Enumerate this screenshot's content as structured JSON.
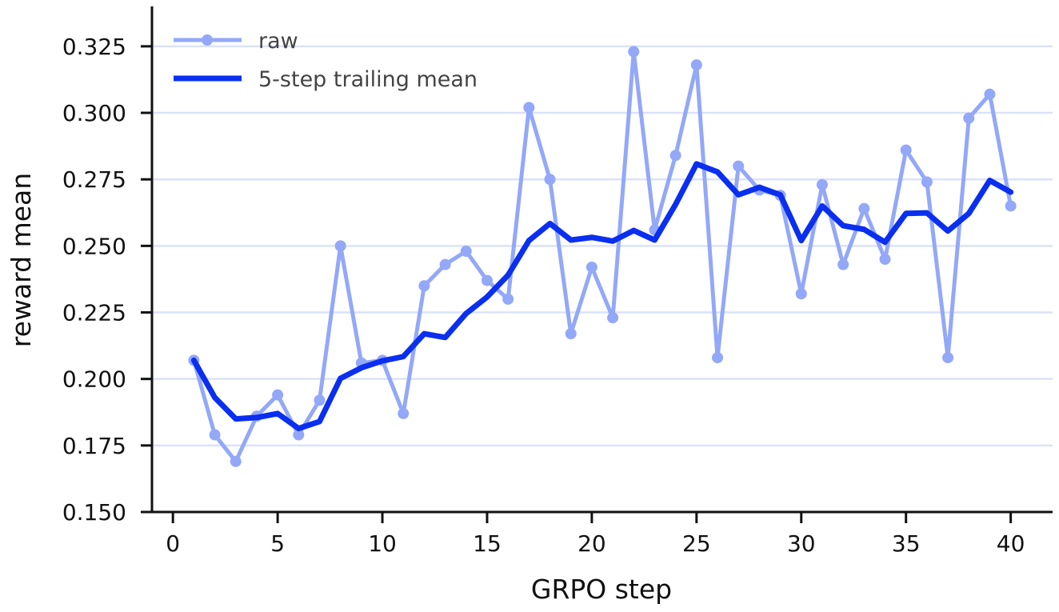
{
  "chart_data": {
    "type": "line",
    "title": "",
    "xlabel": "GRPO step",
    "ylabel": "reward mean",
    "xlim": [
      -1,
      42
    ],
    "ylim": [
      0.15,
      0.34
    ],
    "xticks": [
      0,
      5,
      10,
      15,
      20,
      25,
      30,
      35,
      40
    ],
    "xtick_labels": [
      "0",
      "5",
      "10",
      "15",
      "20",
      "25",
      "30",
      "35",
      "40"
    ],
    "yticks": [
      0.15,
      0.175,
      0.2,
      0.225,
      0.25,
      0.275,
      0.3,
      0.325
    ],
    "ytick_labels": [
      "0.150",
      "0.175",
      "0.200",
      "0.225",
      "0.250",
      "0.275",
      "0.300",
      "0.325"
    ],
    "grid": "horizontal",
    "legend_position": "top-left",
    "x": [
      1,
      2,
      3,
      4,
      5,
      6,
      7,
      8,
      9,
      10,
      11,
      12,
      13,
      14,
      15,
      16,
      17,
      18,
      19,
      20,
      21,
      22,
      23,
      24,
      25,
      26,
      27,
      28,
      29,
      30,
      31,
      32,
      33,
      34,
      35,
      36,
      37,
      38,
      39,
      40
    ],
    "series": [
      {
        "name": "raw",
        "color": "#93a8f8",
        "marker": "circle",
        "values": [
          0.207,
          0.179,
          0.169,
          0.186,
          0.194,
          0.179,
          0.192,
          0.25,
          0.206,
          0.207,
          0.187,
          0.235,
          0.243,
          0.248,
          0.237,
          0.23,
          0.302,
          0.275,
          0.217,
          0.242,
          0.223,
          0.323,
          0.256,
          0.284,
          0.318,
          0.208,
          0.28,
          0.271,
          0.269,
          0.232,
          0.273,
          0.243,
          0.264,
          0.245,
          0.286,
          0.274,
          0.208,
          0.298,
          0.307,
          0.265
        ]
      },
      {
        "name": "5-step trailing mean",
        "color": "#0a2ff0",
        "marker": "none",
        "values": [
          0.207,
          0.193,
          0.185,
          0.1855,
          0.187,
          0.1814,
          0.184,
          0.2002,
          0.2042,
          0.2068,
          0.2084,
          0.217,
          0.2156,
          0.2246,
          0.2308,
          0.239,
          0.252,
          0.2584,
          0.2522,
          0.2532,
          0.2518,
          0.2558,
          0.2522,
          0.2656,
          0.2808,
          0.2778,
          0.2692,
          0.272,
          0.2692,
          0.252,
          0.265,
          0.2576,
          0.2562,
          0.2514,
          0.2622,
          0.2624,
          0.2556,
          0.2622,
          0.2746,
          0.2702
        ]
      }
    ]
  }
}
